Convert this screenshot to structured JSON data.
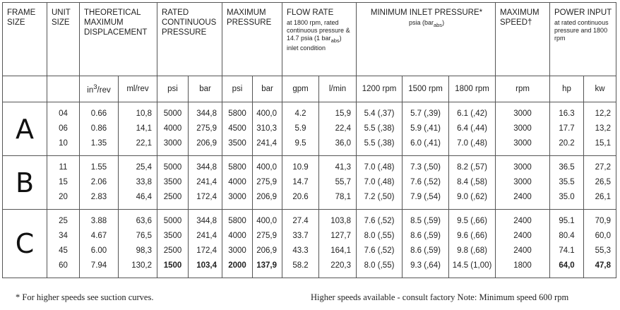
{
  "headers": {
    "frame_size": "FRAME SIZE",
    "unit_size": "UNIT SIZE",
    "displacement": "THEORETICAL MAXIMUM DISPLACEMENT",
    "rated_pressure": "RATED CONTINUOUS PRESSURE",
    "max_pressure": "MAXIMUM PRESSURE",
    "flow_rate": "FLOW RATE",
    "flow_rate_note": "at 1800 rpm, rated continuous pressure & 14.7 psia (1 bar",
    "flow_rate_note_sub": "abs",
    "flow_rate_note_end": ") inlet condition",
    "inlet_pressure": "MINIMUM INLET PRESSURE*",
    "inlet_pressure_unit": "psia (bar",
    "inlet_pressure_unit_sub": "abs",
    "inlet_pressure_unit_end": ")",
    "max_speed": "MAXIMUM SPEED†",
    "power_input": "POWER INPUT",
    "power_input_note": "at rated continuous pressure and 1800 rpm"
  },
  "units": {
    "in3_rev_base": "in",
    "in3_rev_sup": "3",
    "in3_rev_end": "/rev",
    "ml_rev": "ml/rev",
    "psi1": "psi",
    "bar1": "bar",
    "psi2": "psi",
    "bar2": "bar",
    "gpm": "gpm",
    "lmin": "l/min",
    "rpm1200": "1200 rpm",
    "rpm1500": "1500 rpm",
    "rpm1800": "1800 rpm",
    "rpm": "rpm",
    "hp": "hp",
    "kw": "kw"
  },
  "groups": [
    {
      "frame": "A",
      "rows": [
        {
          "unit": "04",
          "in3": "0.66",
          "ml": "10,8",
          "rpsi": "5000",
          "rbar": "344,8",
          "mpsi": "5800",
          "mbar": "400,0",
          "gpm": "4.2",
          "lmin": "15,9",
          "i1200": "5.4 (,37)",
          "i1500": "5.7 (,39)",
          "i1800": "6.1 (,42)",
          "speed": "3000",
          "hp": "16.3",
          "kw": "12,2"
        },
        {
          "unit": "06",
          "in3": "0.86",
          "ml": "14,1",
          "rpsi": "4000",
          "rbar": "275,9",
          "mpsi": "4500",
          "mbar": "310,3",
          "gpm": "5.9",
          "lmin": "22,4",
          "i1200": "5.5 (,38)",
          "i1500": "5.9 (,41)",
          "i1800": "6.4 (,44)",
          "speed": "3000",
          "hp": "17.7",
          "kw": "13,2"
        },
        {
          "unit": "10",
          "in3": "1.35",
          "ml": "22,1",
          "rpsi": "3000",
          "rbar": "206,9",
          "mpsi": "3500",
          "mbar": "241,4",
          "gpm": "9.5",
          "lmin": "36,0",
          "i1200": "5.5 (,38)",
          "i1500": "6.0 (,41)",
          "i1800": "7.0 (,48)",
          "speed": "3000",
          "hp": "20.2",
          "kw": "15,1"
        }
      ]
    },
    {
      "frame": "B",
      "rows": [
        {
          "unit": "11",
          "in3": "1.55",
          "ml": "25,4",
          "rpsi": "5000",
          "rbar": "344,8",
          "mpsi": "5800",
          "mbar": "400,0",
          "gpm": "10.9",
          "lmin": "41,3",
          "i1200": "7.0 (,48)",
          "i1500": "7.3 (,50)",
          "i1800": "8.2 (,57)",
          "speed": "3000",
          "hp": "36.5",
          "kw": "27,2"
        },
        {
          "unit": "15",
          "in3": "2.06",
          "ml": "33,8",
          "rpsi": "3500",
          "rbar": "241,4",
          "mpsi": "4000",
          "mbar": "275,9",
          "gpm": "14.7",
          "lmin": "55,7",
          "i1200": "7.0 (,48)",
          "i1500": "7.6 (,52)",
          "i1800": "8.4 (,58)",
          "speed": "3000",
          "hp": "35.5",
          "kw": "26,5"
        },
        {
          "unit": "20",
          "in3": "2.83",
          "ml": "46,4",
          "rpsi": "2500",
          "rbar": "172,4",
          "mpsi": "3000",
          "mbar": "206,9",
          "gpm": "20.6",
          "lmin": "78,1",
          "i1200": "7.2 (,50)",
          "i1500": "7.9 (,54)",
          "i1800": "9.0 (,62)",
          "speed": "2400",
          "hp": "35.0",
          "kw": "26,1"
        }
      ]
    },
    {
      "frame": "C",
      "rows": [
        {
          "unit": "25",
          "in3": "3.88",
          "ml": "63,6",
          "rpsi": "5000",
          "rbar": "344,8",
          "mpsi": "5800",
          "mbar": "400,0",
          "gpm": "27.4",
          "lmin": "103,8",
          "i1200": "7.6 (,52)",
          "i1500": "8.5 (,59)",
          "i1800": "9.5 (,66)",
          "speed": "2400",
          "hp": "95.1",
          "kw": "70,9"
        },
        {
          "unit": "34",
          "in3": "4.67",
          "ml": "76,5",
          "rpsi": "3500",
          "rbar": "241,4",
          "mpsi": "4000",
          "mbar": "275,9",
          "gpm": "33.7",
          "lmin": "127,7",
          "i1200": "8.0 (,55)",
          "i1500": "8.6 (,59)",
          "i1800": "9.6 (,66)",
          "speed": "2400",
          "hp": "80.4",
          "kw": "60,0"
        },
        {
          "unit": "45",
          "in3": "6.00",
          "ml": "98,3",
          "rpsi": "2500",
          "rbar": "172,4",
          "mpsi": "3000",
          "mbar": "206,9",
          "gpm": "43.3",
          "lmin": "164,1",
          "i1200": "7.6 (,52)",
          "i1500": "8.6 (,59)",
          "i1800": "9.8 (,68)",
          "speed": "2400",
          "hp": "74.1",
          "kw": "55,3"
        },
        {
          "unit": "60",
          "in3": "7.94",
          "ml": "130,2",
          "rpsi": "1500",
          "rbar": "103,4",
          "mpsi": "2000",
          "mbar": "137,9",
          "gpm": "58.2",
          "lmin": "220,3",
          "i1200": "8.0 (,55)",
          "i1500": "9.3 (,64)",
          "i1800": "14.5 (1,00)",
          "speed": "1800",
          "hp": "64,0",
          "kw": "47,8"
        }
      ]
    }
  ],
  "footnotes": {
    "left": "* For higher speeds see suction curves.",
    "right": "Higher speeds available - consult factory  Note: Minimum speed 600 rpm"
  }
}
